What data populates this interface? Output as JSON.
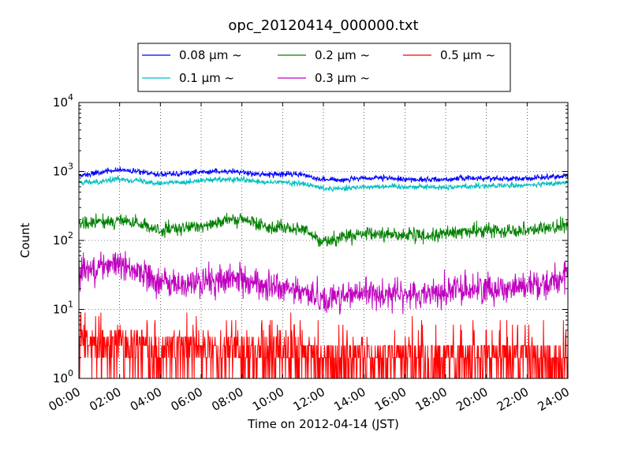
{
  "chart_data": {
    "type": "line",
    "title": "opc_20120414_000000.txt",
    "xlabel": "Time on 2012-04-14 (JST)",
    "ylabel": "Count",
    "xlim": [
      "00:00",
      "24:00"
    ],
    "ylim": [
      1,
      10000
    ],
    "y_scale": "log",
    "grid": true,
    "legend_position": "top-center",
    "x_ticks": [
      "00:00",
      "02:00",
      "04:00",
      "06:00",
      "08:00",
      "10:00",
      "12:00",
      "14:00",
      "16:00",
      "18:00",
      "20:00",
      "22:00",
      "24:00"
    ],
    "y_ticks": [
      {
        "base": "10",
        "exp": "0"
      },
      {
        "base": "10",
        "exp": "1"
      },
      {
        "base": "10",
        "exp": "2"
      },
      {
        "base": "10",
        "exp": "3"
      },
      {
        "base": "10",
        "exp": "4"
      }
    ],
    "x_hours": [
      0,
      1,
      2,
      3,
      4,
      5,
      6,
      7,
      8,
      9,
      10,
      11,
      12,
      13,
      14,
      15,
      16,
      17,
      18,
      19,
      20,
      21,
      22,
      23,
      24
    ],
    "series": [
      {
        "name": "0.08 μm ~",
        "color": "#0000ff",
        "noise": 0.04,
        "values": [
          880,
          960,
          1060,
          980,
          920,
          940,
          980,
          1000,
          980,
          900,
          920,
          900,
          760,
          760,
          790,
          800,
          770,
          760,
          770,
          800,
          800,
          790,
          790,
          830,
          870
        ]
      },
      {
        "name": "0.1 μm ~",
        "color": "#00bfbf",
        "noise": 0.04,
        "values": [
          680,
          720,
          780,
          730,
          680,
          700,
          740,
          760,
          760,
          690,
          700,
          660,
          570,
          570,
          600,
          610,
          600,
          600,
          590,
          610,
          620,
          620,
          630,
          660,
          700
        ]
      },
      {
        "name": "0.2 μm ~",
        "color": "#008000",
        "noise": 0.1,
        "values": [
          170,
          185,
          195,
          170,
          140,
          145,
          165,
          190,
          200,
          165,
          155,
          140,
          95,
          115,
          120,
          125,
          120,
          115,
          125,
          135,
          140,
          140,
          145,
          150,
          165
        ]
      },
      {
        "name": "0.3 μm ~",
        "color": "#bf00bf",
        "noise": 0.22,
        "values": [
          38,
          42,
          46,
          35,
          25,
          22,
          25,
          26,
          28,
          22,
          20,
          18,
          14,
          16,
          17,
          17,
          16,
          17,
          18,
          20,
          20,
          21,
          22,
          25,
          30
        ]
      },
      {
        "name": "0.5 μm ~",
        "color": "#ff0000",
        "noise": 1.0,
        "values": [
          3,
          3,
          3.5,
          3,
          2.5,
          2.5,
          2.5,
          2.5,
          2.5,
          2.5,
          2.5,
          2,
          2,
          2,
          2,
          2,
          2,
          2,
          2,
          2,
          2,
          2,
          2,
          2,
          2
        ]
      }
    ]
  }
}
